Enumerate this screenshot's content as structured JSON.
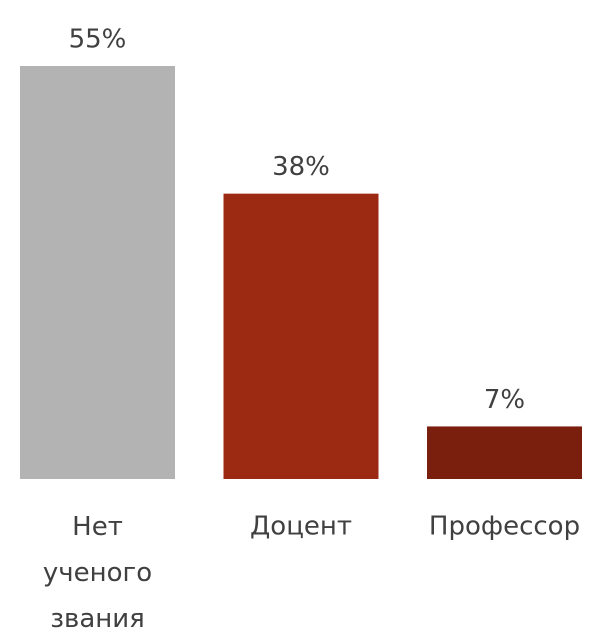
{
  "chart_data": {
    "type": "bar",
    "categories": [
      "Нет ученого звания",
      "Доцент",
      "Профессор"
    ],
    "values": [
      55,
      38,
      7
    ],
    "value_labels": [
      "55%",
      "38%",
      "7%"
    ],
    "colors": [
      "#b3b3b3",
      "#9c2a12",
      "#7a1f0e"
    ]
  }
}
